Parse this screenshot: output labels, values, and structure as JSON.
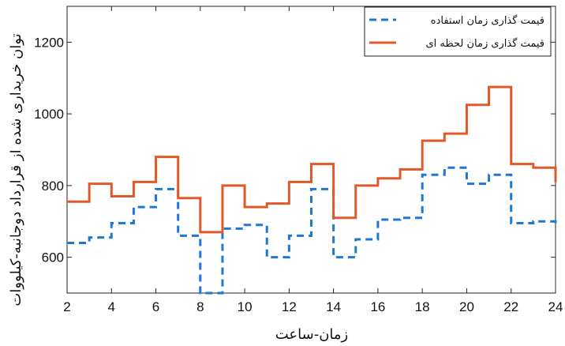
{
  "chart_data": {
    "type": "line",
    "step": true,
    "xlabel": "زمان-ساعت",
    "ylabel": "توان خریداری شده از قرارداد دوجانبه-کیلووات",
    "xlim": [
      2,
      24
    ],
    "ylim": [
      500,
      1300
    ],
    "xticks": [
      2,
      4,
      6,
      8,
      10,
      12,
      14,
      16,
      18,
      20,
      22,
      24
    ],
    "yticks": [
      600,
      800,
      1000,
      1200
    ],
    "grid": false,
    "legend_position": "top-right",
    "series": [
      {
        "name": "قیمت گذاری زمان استفاده",
        "color": "#1f77d4",
        "dash": "dashed",
        "x": [
          2,
          3,
          4,
          5,
          6,
          7,
          8,
          9,
          10,
          11,
          12,
          13,
          14,
          15,
          16,
          17,
          18,
          19,
          20,
          21,
          22,
          23,
          24
        ],
        "values": [
          640,
          655,
          695,
          740,
          790,
          660,
          500,
          680,
          690,
          600,
          660,
          790,
          600,
          650,
          705,
          710,
          830,
          850,
          805,
          830,
          695,
          700,
          685
        ]
      },
      {
        "name": "قیمت گذاری زمان لحظه ای",
        "color": "#e0592a",
        "dash": "solid",
        "x": [
          2,
          3,
          4,
          5,
          6,
          7,
          8,
          9,
          10,
          11,
          12,
          13,
          14,
          15,
          16,
          17,
          18,
          19,
          20,
          21,
          22,
          23,
          24
        ],
        "values": [
          755,
          805,
          770,
          810,
          880,
          765,
          670,
          800,
          740,
          750,
          810,
          860,
          710,
          800,
          820,
          845,
          925,
          945,
          1025,
          1075,
          860,
          850,
          810
        ]
      }
    ]
  }
}
